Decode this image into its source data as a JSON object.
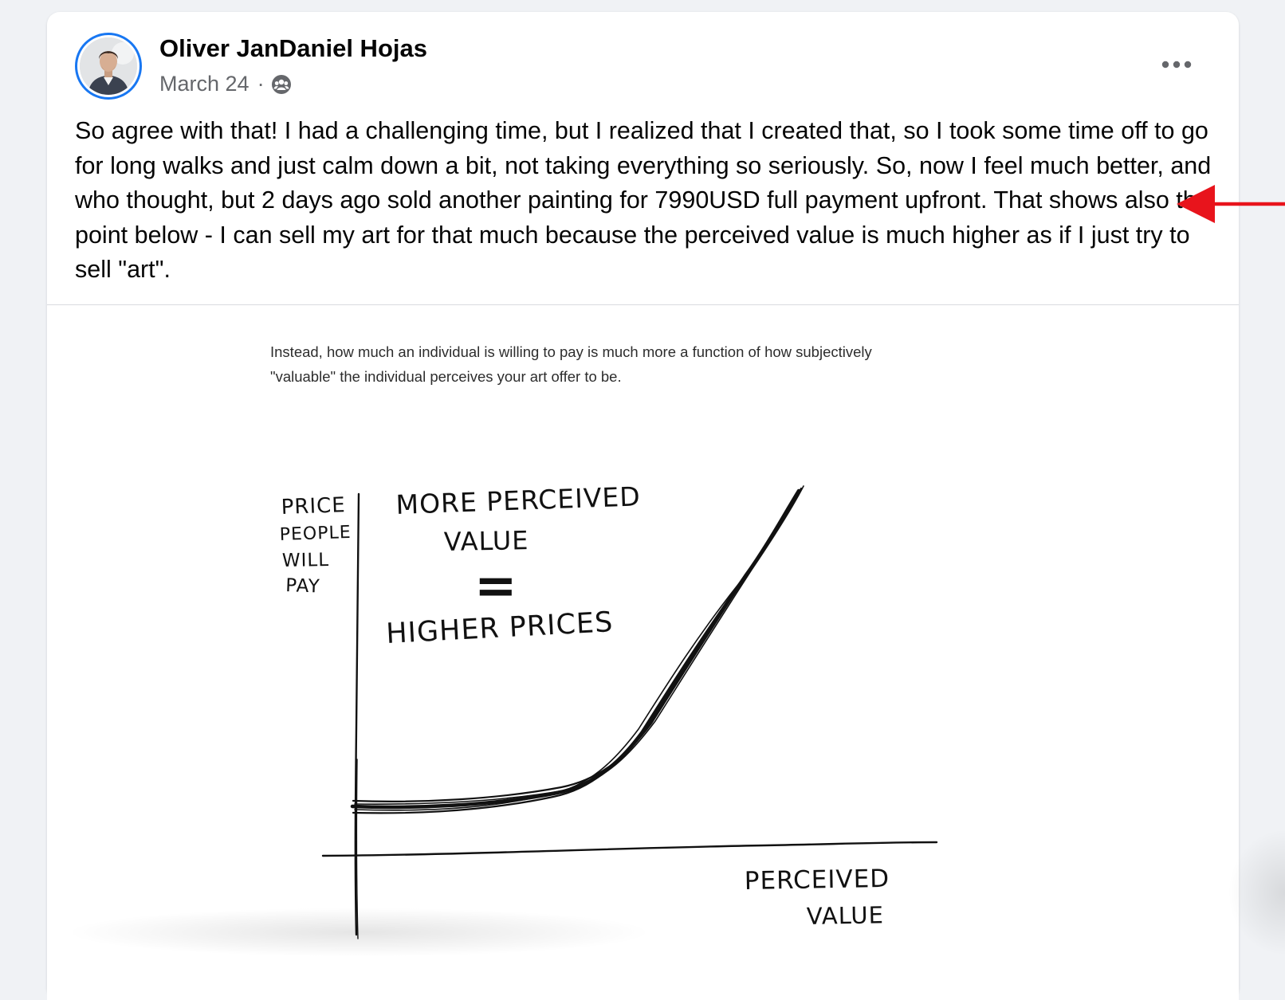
{
  "post": {
    "author": "Oliver JanDaniel Hojas",
    "date": "March 24",
    "separator": "·",
    "audience_icon": "group-icon",
    "more_icon": "more-options-icon",
    "body": "So agree with that! I had a challenging time, but I realized that I created that, so I took some time off to go for long walks and just calm down a bit, not taking everything so seriously. So, now I feel much better, and who thought, but 2 days ago sold another painting for 7990USD full payment upfront. That shows also the point below - I can sell my art for that much because the perceived value is much higher as if I just try to sell \"art\"."
  },
  "annotation": {
    "arrow_icon": "red-arrow-icon",
    "color": "#e8141c"
  },
  "image": {
    "caption_line1": "Instead, how much an individual is willing to pay is much more a function of how subjectively",
    "caption_line2": "\"valuable\" the individual perceives your art offer to be.",
    "sketch": {
      "y_label": [
        "PRICE",
        "PEOPLE",
        "WILL",
        "PAY"
      ],
      "heading_line1": "MORE PERCEIVED",
      "heading_line2": "VALUE",
      "equals": "=",
      "heading_line3": "HIGHER PRICES",
      "x_label_line1": "PERCEIVED",
      "x_label_line2": "VALUE"
    }
  },
  "colors": {
    "page_background": "#f0f2f5",
    "card_background": "#ffffff",
    "text_primary": "#050505",
    "text_secondary": "#65676b",
    "avatar_ring": "#1877f2"
  }
}
